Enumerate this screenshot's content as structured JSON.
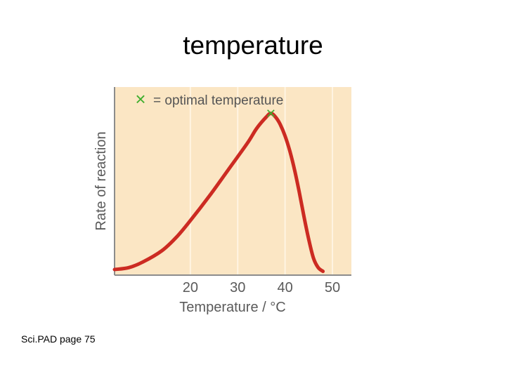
{
  "slide": {
    "title": "temperature",
    "footer": "Sci.PAD page 75"
  },
  "colors": {
    "plot_background": "#fbe6c4",
    "curve": "#cc2b22",
    "marker": "#3fae2e",
    "gridline": "#fff4e2",
    "axis": "#8c8c8c"
  },
  "chart_data": {
    "type": "line",
    "title": "",
    "xlabel": "Temperature / °C",
    "ylabel": "Rate of reaction",
    "xlim": [
      4,
      54
    ],
    "ylim": [
      0,
      100
    ],
    "x_ticks": [
      20,
      30,
      40,
      50
    ],
    "y_ticks": [],
    "grid": true,
    "legend": {
      "position": "top",
      "marker_symbol": "×",
      "text": "= optimal temperature"
    },
    "series": [
      {
        "x": [
          4,
          7,
          10,
          14,
          17,
          20,
          24,
          28,
          32,
          34,
          36,
          37,
          38,
          39,
          40,
          41,
          42,
          43,
          44,
          45,
          46,
          47,
          48
        ],
        "y": [
          3,
          4,
          7,
          13,
          20,
          29,
          42,
          56,
          70,
          78,
          84,
          86,
          84,
          80,
          74,
          66,
          56,
          44,
          31,
          19,
          9,
          4,
          2
        ]
      }
    ],
    "optimum": {
      "x": 37,
      "y": 86
    }
  }
}
